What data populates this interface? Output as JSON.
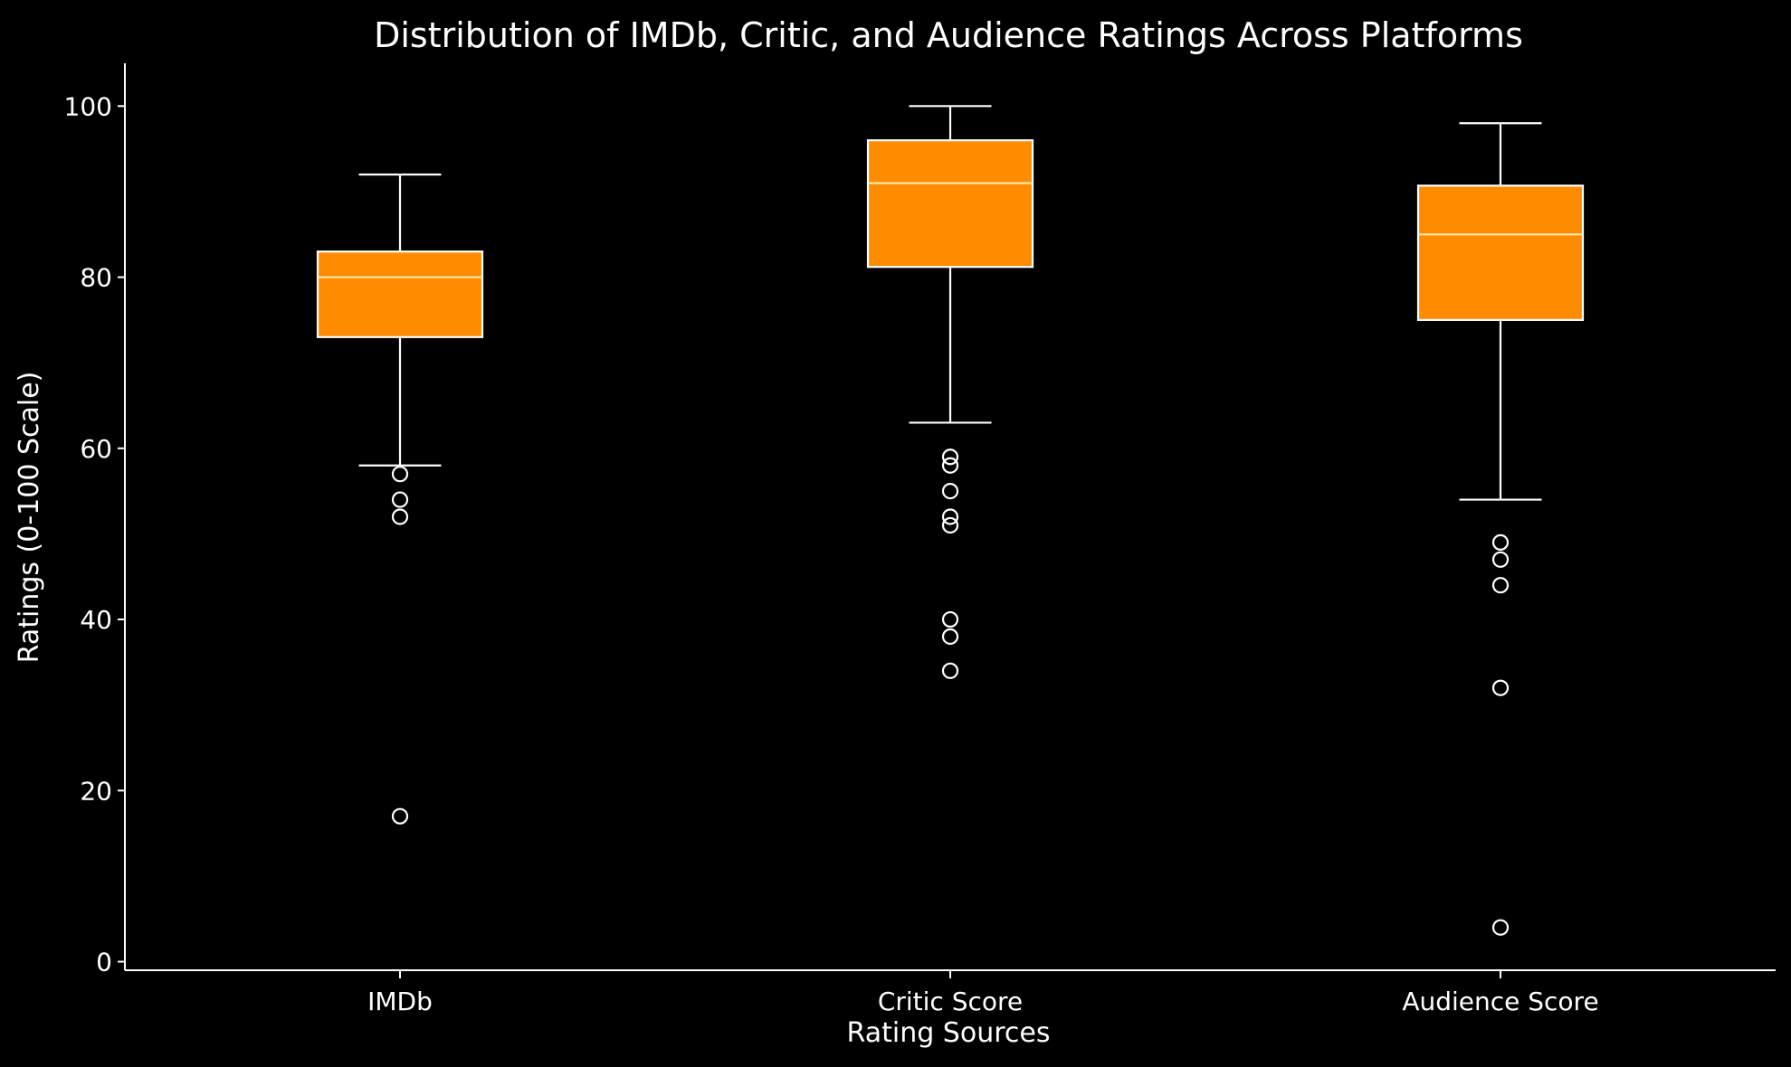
{
  "chart_data": {
    "type": "box",
    "title": "Distribution of IMDb, Critic, and Audience Ratings Across Platforms",
    "xlabel": "Rating Sources",
    "ylabel": "Ratings (0-100 Scale)",
    "categories": [
      "IMDb",
      "Critic Score",
      "Audience Score"
    ],
    "ylim": [
      -1,
      105
    ],
    "yticks": [
      0,
      20,
      40,
      60,
      80,
      100
    ],
    "grid": false,
    "boxes": [
      {
        "name": "IMDb",
        "whisker_low": 58,
        "q1": 73,
        "median": 80,
        "q3": 83,
        "whisker_high": 92,
        "outliers": [
          57,
          54,
          52,
          17
        ]
      },
      {
        "name": "Critic Score",
        "whisker_low": 63,
        "q1": 81.2,
        "median": 91,
        "q3": 96,
        "whisker_high": 100,
        "outliers": [
          59,
          58,
          55,
          52,
          51,
          40,
          38,
          34
        ]
      },
      {
        "name": "Audience Score",
        "whisker_low": 54,
        "q1": 75,
        "median": 85,
        "q3": 90.7,
        "whisker_high": 98,
        "outliers": [
          49,
          47,
          44,
          32,
          4
        ]
      }
    ],
    "colors": {
      "background": "#000000",
      "box_fill": "#ff8c00",
      "median_line": "#ffe4a8",
      "lines": "#ffffff",
      "text": "#ffffff"
    }
  }
}
